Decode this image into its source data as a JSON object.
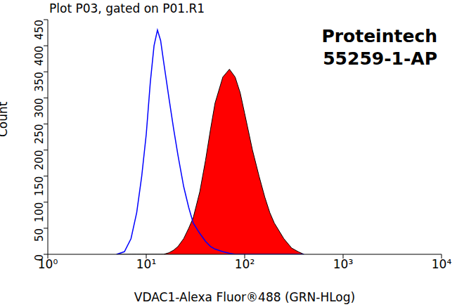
{
  "chart_data": {
    "type": "area",
    "title": "Plot P03, gated on P01.R1",
    "annotations": [
      "Proteintech",
      "55259-1-AP"
    ],
    "xlabel": "VDAC1-Alexa Fluor®488 (GRN-HLog)",
    "ylabel": "Count",
    "log": "x",
    "xlim": [
      1,
      10000
    ],
    "xticks": [
      {
        "value": 1,
        "label": "10⁰"
      },
      {
        "value": 10,
        "label": "10¹"
      },
      {
        "value": 100,
        "label": "10²"
      },
      {
        "value": 1000,
        "label": "10³"
      },
      {
        "value": 10000,
        "label": "10⁴"
      }
    ],
    "ylim": [
      0,
      450
    ],
    "yticks": [
      0,
      50,
      100,
      150,
      200,
      250,
      300,
      350,
      400,
      450
    ],
    "x": [
      5,
      6,
      7,
      8,
      9,
      10,
      11,
      12,
      13,
      14,
      15,
      17,
      19,
      21,
      24,
      27,
      30,
      35,
      40,
      45,
      50,
      60,
      70,
      80,
      90,
      100,
      120,
      140,
      160,
      180,
      200,
      250,
      300,
      350,
      400
    ],
    "series": [
      {
        "type": "area",
        "color": "#ff0000",
        "values": [
          0,
          0,
          0,
          0,
          0,
          0,
          0,
          0,
          0,
          0,
          0,
          3,
          8,
          15,
          30,
          50,
          70,
          120,
          180,
          240,
          290,
          340,
          355,
          340,
          310,
          270,
          200,
          150,
          110,
          80,
          60,
          30,
          12,
          5,
          0
        ]
      },
      {
        "type": "line",
        "color": "#0000ff",
        "values": [
          0,
          5,
          30,
          80,
          150,
          230,
          330,
          400,
          430,
          410,
          370,
          300,
          240,
          190,
          130,
          90,
          60,
          40,
          25,
          15,
          10,
          5,
          2,
          0,
          0,
          0,
          0,
          0,
          0,
          0,
          0,
          0,
          0,
          0,
          0
        ]
      }
    ]
  }
}
